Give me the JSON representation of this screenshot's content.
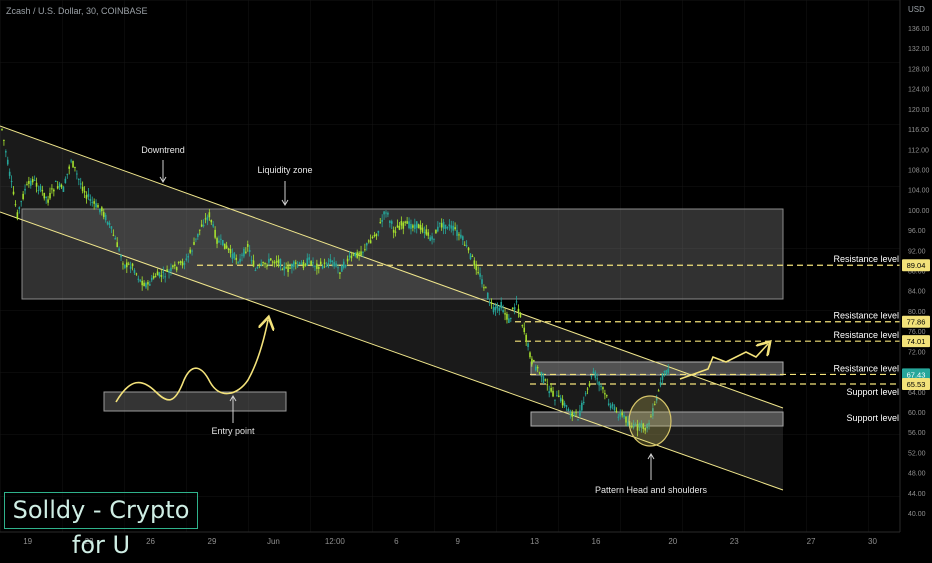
{
  "header": {
    "symbol_line": "Zcash / U.S. Dollar, 30, COINBASE",
    "currency": "USD"
  },
  "brand": {
    "text": "Solldy - Crypto for U"
  },
  "chart_data": {
    "type": "line",
    "ylim": [
      40,
      136
    ],
    "y_ticks": [
      40,
      44,
      48,
      52,
      56,
      60,
      64,
      68,
      72,
      76,
      80,
      84,
      88,
      92,
      96,
      100,
      104,
      108,
      112,
      116,
      120,
      124,
      128,
      132,
      136
    ],
    "x_ticks": [
      {
        "label": "19",
        "t": 1
      },
      {
        "label": "23",
        "t": 9
      },
      {
        "label": "26",
        "t": 17
      },
      {
        "label": "29",
        "t": 25
      },
      {
        "label": "Jun",
        "t": 33
      },
      {
        "label": "12:00",
        "t": 41
      },
      {
        "label": "6",
        "t": 49
      },
      {
        "label": "9",
        "t": 57
      },
      {
        "label": "13",
        "t": 67
      },
      {
        "label": "16",
        "t": 75
      },
      {
        "label": "20",
        "t": 85
      },
      {
        "label": "23",
        "t": 93
      },
      {
        "label": "27",
        "t": 103
      },
      {
        "label": "30",
        "t": 111
      }
    ],
    "series": [
      {
        "t": [
          0,
          1,
          2,
          3,
          4,
          5,
          6,
          7,
          8,
          9,
          10,
          11,
          12,
          13,
          14,
          15,
          16,
          17,
          18,
          19,
          20,
          21,
          22,
          23,
          24,
          25,
          26,
          27,
          28,
          29,
          30,
          31,
          32,
          33,
          34,
          35,
          36,
          37,
          38,
          39,
          40,
          41,
          42,
          43,
          44,
          45,
          46,
          47,
          48,
          49,
          50,
          51,
          52,
          53,
          54,
          55,
          56,
          57,
          58,
          59,
          60,
          61,
          62,
          63,
          64,
          65,
          66,
          67,
          68,
          69,
          70,
          71,
          72,
          73,
          74,
          75,
          76,
          77,
          78,
          79,
          80,
          81,
          82,
          83,
          84,
          85,
          86,
          87
        ],
        "values": [
          116,
          107,
          99,
          104,
          106,
          104,
          102,
          105,
          104,
          110,
          106,
          103,
          101,
          100,
          97,
          93,
          89,
          89,
          86,
          85,
          87,
          87,
          88,
          89,
          90,
          93,
          97,
          99,
          94,
          93,
          91,
          90,
          93,
          88,
          89,
          90,
          90,
          88,
          89,
          89,
          90,
          89,
          89,
          90,
          88,
          90,
          91,
          92,
          94,
          96,
          100,
          96,
          97,
          97,
          97,
          96,
          94,
          97,
          97,
          96,
          94,
          91,
          88,
          84,
          80,
          81,
          78,
          82,
          76,
          70,
          68,
          65,
          63,
          62,
          60,
          59,
          63,
          68,
          65,
          62,
          60,
          59,
          57,
          57,
          57,
          61,
          67,
          69
        ]
      }
    ],
    "levels": [
      {
        "label": "Resistance level",
        "value": 89.04,
        "badge": "89.04",
        "color": "#f3e27a"
      },
      {
        "label": "Resistance level",
        "value": 77.86,
        "badge": "77.86",
        "color": "#f3e27a"
      },
      {
        "label": "Resistance level",
        "value": 74.01,
        "badge": "74.01",
        "color": "#f3e27a"
      },
      {
        "label": "Resistance level",
        "value": 67.43,
        "badge": "67.43",
        "color": "#f3e27a"
      },
      {
        "label": "Support level",
        "value": 65.53,
        "badge": "65.53",
        "color": "#f3e27a"
      },
      {
        "label": "Support level",
        "value": 59.0,
        "badge": "",
        "color": "#f3e27a"
      }
    ],
    "annotations": [
      "Downtrend",
      "Liquidity zone",
      "Entry point",
      "Pattern Head and shoulders"
    ],
    "colors": {
      "up": "#26a69a",
      "down": "#a6e22e",
      "trend": "#f0e68c",
      "level": "#f3e27a",
      "badge_last": "#26a69a"
    }
  }
}
